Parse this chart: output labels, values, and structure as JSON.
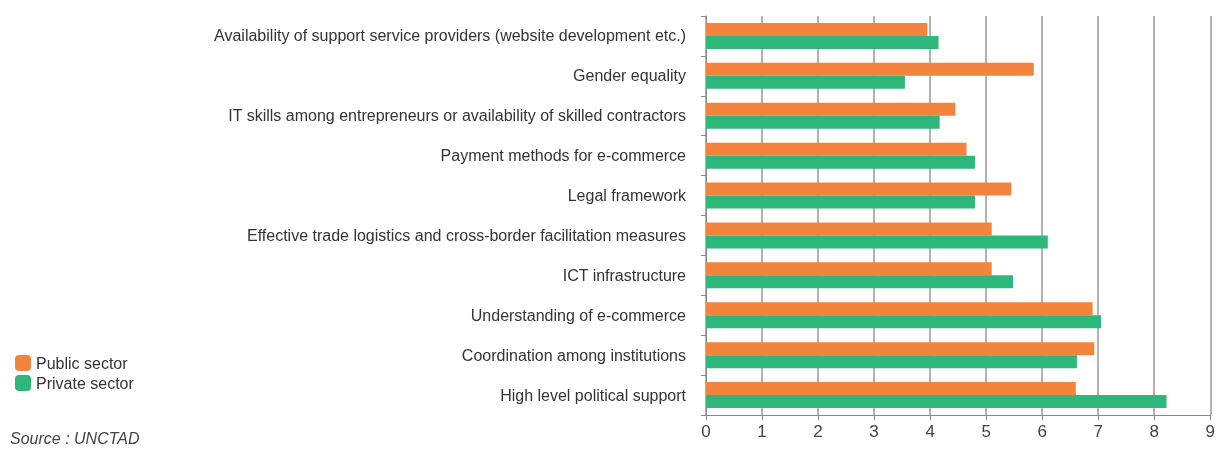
{
  "chart_data": {
    "type": "bar",
    "orientation": "horizontal",
    "categories": [
      "Availability of support service providers (website development etc.)",
      "Gender equality",
      "IT skills among entrepreneurs or availability of skilled contractors",
      "Payment methods for e-commerce",
      "Legal framework",
      "Effective trade logistics and cross-border facilitation measures",
      "ICT infrastructure",
      "Understanding of e-commerce",
      "Coordination among institutions",
      "High level political support"
    ],
    "series": [
      {
        "name": "Public sector",
        "color": "#f3843e",
        "values": [
          3.95,
          5.85,
          4.45,
          4.65,
          5.45,
          5.1,
          5.1,
          6.9,
          6.93,
          6.6
        ]
      },
      {
        "name": "Private sector",
        "color": "#2eb77b",
        "values": [
          4.15,
          3.55,
          4.17,
          4.8,
          4.8,
          6.1,
          5.48,
          7.05,
          6.62,
          8.22
        ]
      }
    ],
    "xlim": [
      0,
      9
    ],
    "xticks": [
      0,
      1,
      2,
      3,
      4,
      5,
      6,
      7,
      8,
      9
    ],
    "grid": "x",
    "legend": "bottom left",
    "annotations": [
      "Source : UNCTAD"
    ]
  }
}
